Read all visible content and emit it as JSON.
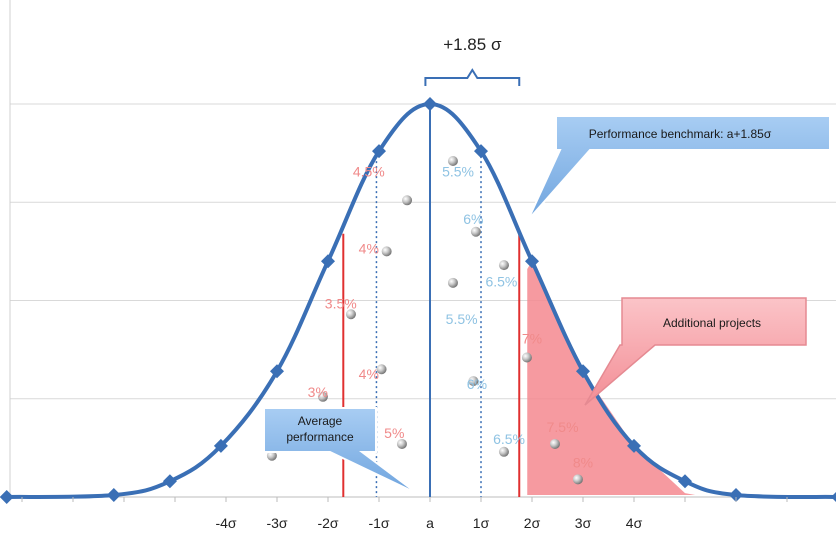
{
  "chart_data": {
    "type": "line",
    "x_tick_labels": [
      "-4σ",
      "-3σ",
      "-2σ",
      "-1σ",
      "a",
      "1σ",
      "2σ",
      "3σ",
      "4σ"
    ],
    "x_tick_values": [
      -4,
      -3,
      -2,
      -1,
      0,
      1,
      2,
      3,
      4
    ],
    "xlim": [
      -8.3,
      8.0
    ],
    "ylim": [
      0,
      1.0
    ],
    "grid": {
      "horizontal": true,
      "vertical": false
    },
    "series": [
      {
        "x": [
          -8.3,
          -6.2,
          -5.1,
          -4.1,
          -3.0,
          -2.0,
          -1.0,
          0.0,
          1.0,
          2.0,
          3.0,
          4.0,
          5.0,
          6.0,
          8.0
        ],
        "y": [
          0.0,
          0.005,
          0.04,
          0.13,
          0.32,
          0.6,
          0.88,
          1.0,
          0.88,
          0.6,
          0.32,
          0.13,
          0.04,
          0.005,
          0.0
        ]
      }
    ],
    "markers_x": [
      -8.3,
      -6.2,
      -5.1,
      -4.1,
      -3.0,
      -2.0,
      -1.0,
      0.0,
      1.0,
      2.0,
      3.0,
      4.0,
      5.0,
      6.0,
      8.0
    ],
    "lines": {
      "mean_x": 0,
      "average_performance_x": -1.7,
      "benchmark_x": 1.75,
      "dotted_x": [
        -1.05,
        1.0
      ]
    },
    "bracket": {
      "label": "+1.85 σ",
      "from_x": -0.09,
      "to_x": 1.75
    },
    "percent_labels": [
      {
        "text": "4.5%",
        "x": -1.2,
        "y": 0.815,
        "color": "#f08a8a"
      },
      {
        "text": "4%",
        "x": -1.2,
        "y": 0.62,
        "color": "#f08a8a"
      },
      {
        "text": "3.5%",
        "x": -1.75,
        "y": 0.48,
        "color": "#f08a8a"
      },
      {
        "text": "4%",
        "x": -1.2,
        "y": 0.3,
        "color": "#f08a8a"
      },
      {
        "text": "3%",
        "x": -2.2,
        "y": 0.255,
        "color": "#f08a8a"
      },
      {
        "text": "5%",
        "x": -0.7,
        "y": 0.15,
        "color": "#f08a8a"
      },
      {
        "text": "5.5%",
        "x": 0.55,
        "y": 0.815,
        "color": "#8fc3e3"
      },
      {
        "text": "6%",
        "x": 0.85,
        "y": 0.695,
        "color": "#8fc3e3"
      },
      {
        "text": "6.5%",
        "x": 1.4,
        "y": 0.535,
        "color": "#8fc3e3"
      },
      {
        "text": "5.5%",
        "x": 0.62,
        "y": 0.44,
        "color": "#8fc3e3"
      },
      {
        "text": "6%",
        "x": 0.92,
        "y": 0.275,
        "color": "#8fc3e3"
      },
      {
        "text": "6.5%",
        "x": 1.55,
        "y": 0.135,
        "color": "#8fc3e3"
      },
      {
        "text": "7%",
        "x": 2.0,
        "y": 0.39,
        "color": "#f08a8a"
      },
      {
        "text": "7.5%",
        "x": 2.6,
        "y": 0.165,
        "color": "#f08a8a"
      },
      {
        "text": "8%",
        "x": 3.0,
        "y": 0.075,
        "color": "#f08a8a"
      }
    ],
    "spheres": [
      [
        -0.45,
        0.755
      ],
      [
        -0.85,
        0.625
      ],
      [
        -1.55,
        0.465
      ],
      [
        -0.95,
        0.325
      ],
      [
        -2.1,
        0.255
      ],
      [
        -0.55,
        0.135
      ],
      [
        -3.1,
        0.105
      ],
      [
        0.45,
        0.855
      ],
      [
        0.9,
        0.675
      ],
      [
        1.45,
        0.59
      ],
      [
        0.45,
        0.545
      ],
      [
        0.85,
        0.295
      ],
      [
        1.45,
        0.115
      ],
      [
        1.9,
        0.355
      ],
      [
        2.45,
        0.135
      ],
      [
        2.9,
        0.045
      ]
    ],
    "annotations": {
      "benchmark": "Performance benchmark: a+1.85σ",
      "additional": "Additional projects",
      "average_line1": "Average",
      "average_line2": "performance"
    },
    "colors": {
      "curve": "#3a6fb5",
      "red_line": "#e03030",
      "shade": "#f4888f",
      "grid": "#d9d9d9",
      "blue_callout": "#7ab0e8",
      "red_callout": "#f6a0a6"
    }
  }
}
